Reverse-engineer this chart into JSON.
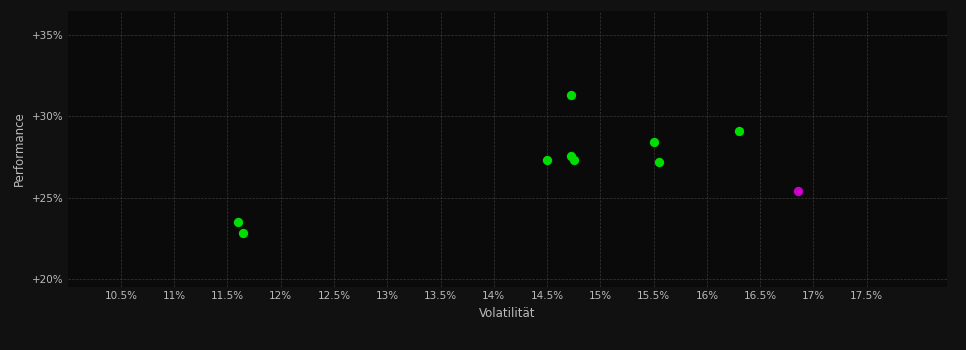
{
  "green_points": [
    [
      11.6,
      23.5
    ],
    [
      11.65,
      22.8
    ],
    [
      14.5,
      27.3
    ],
    [
      14.72,
      27.55
    ],
    [
      14.75,
      27.3
    ],
    [
      14.72,
      31.3
    ],
    [
      15.5,
      28.4
    ],
    [
      15.55,
      27.2
    ],
    [
      16.3,
      29.1
    ]
  ],
  "magenta_points": [
    [
      16.85,
      25.4
    ]
  ],
  "green_color": "#00dd00",
  "magenta_color": "#cc00cc",
  "background_color": "#111111",
  "plot_bg_color": "#0a0a0a",
  "grid_color": "#444444",
  "tick_color": "#bbbbbb",
  "xlabel": "Volatilität",
  "ylabel": "Performance",
  "xlim": [
    10.0,
    18.25
  ],
  "ylim": [
    19.5,
    36.5
  ],
  "xticks": [
    10.5,
    11.0,
    11.5,
    12.0,
    12.5,
    13.0,
    13.5,
    14.0,
    14.5,
    15.0,
    15.5,
    16.0,
    16.5,
    17.0,
    17.5
  ],
  "yticks": [
    20.0,
    25.0,
    30.0,
    35.0
  ],
  "ytick_labels": [
    "+20%",
    "+25%",
    "+30%",
    "+35%"
  ],
  "marker_size": 45
}
